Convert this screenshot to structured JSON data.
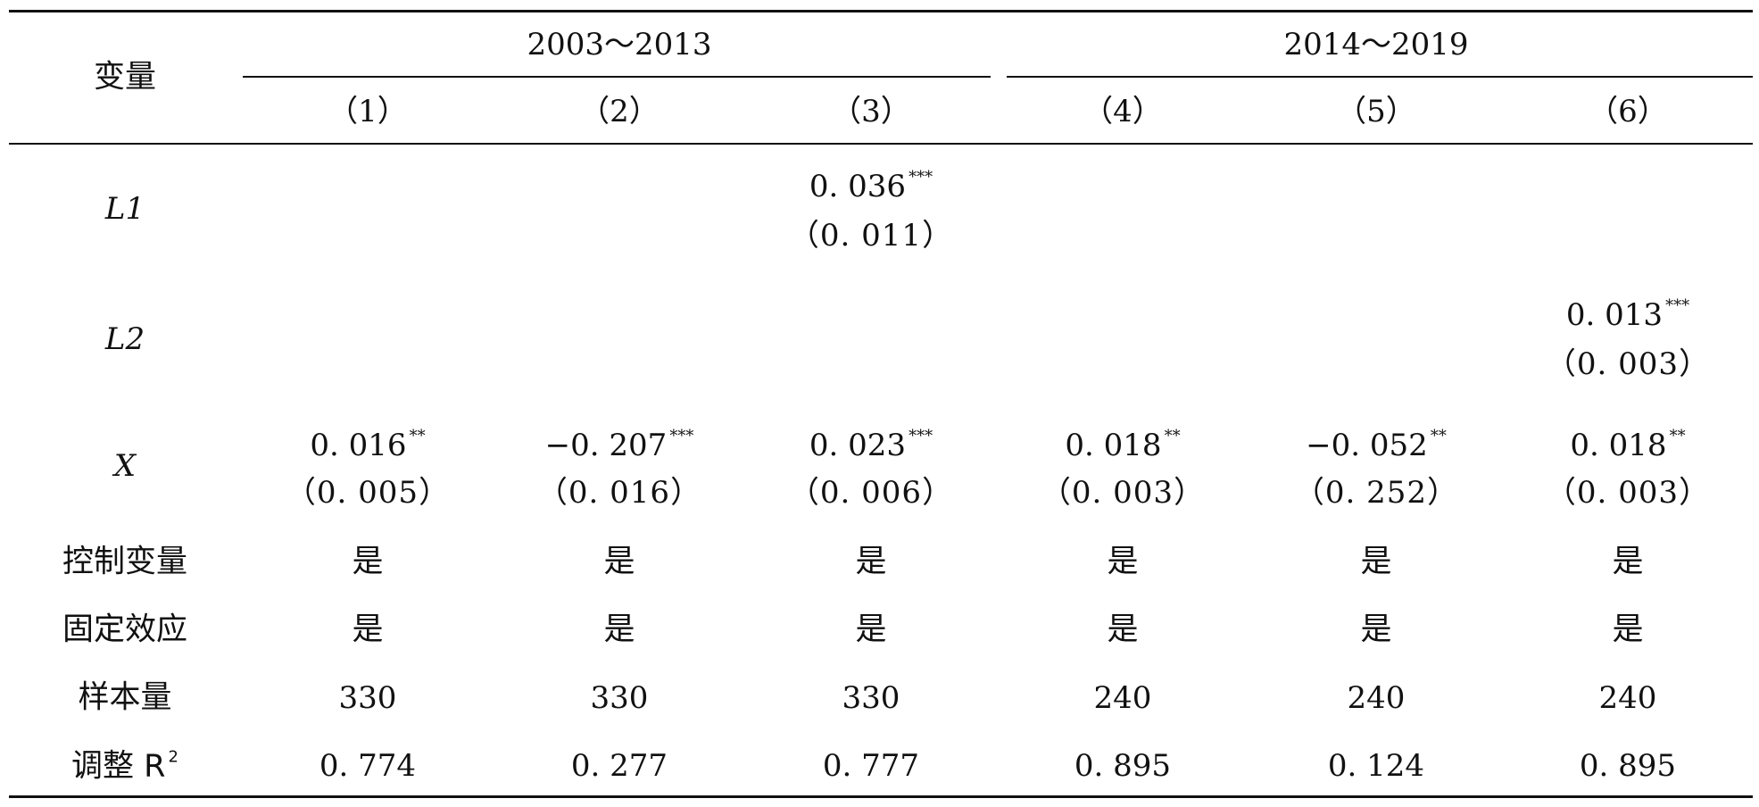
{
  "table": {
    "variable_header": "变量",
    "groups": [
      "2003～2013",
      "2014～2019"
    ],
    "columns": [
      "（1）",
      "（2）",
      "（3）",
      "（4）",
      "（5）",
      "（6）"
    ],
    "rows": {
      "L1": {
        "label": "L1",
        "coef": [
          "",
          "",
          "0. 036",
          "",
          "",
          ""
        ],
        "stars": [
          "",
          "",
          "***",
          "",
          "",
          ""
        ],
        "se": [
          "",
          "",
          "（0. 011）",
          "",
          "",
          ""
        ]
      },
      "L2": {
        "label": "L2",
        "coef": [
          "",
          "",
          "",
          "",
          "",
          "0. 013"
        ],
        "stars": [
          "",
          "",
          "",
          "",
          "",
          "***"
        ],
        "se": [
          "",
          "",
          "",
          "",
          "",
          "（0. 003）"
        ]
      },
      "X": {
        "label": "X",
        "coef": [
          "0. 016",
          "−0. 207",
          "0. 023",
          "0. 018",
          "−0. 052",
          "0. 018"
        ],
        "stars": [
          "**",
          "***",
          "***",
          "**",
          "**",
          "**"
        ],
        "se": [
          "（0. 005）",
          "（0. 016）",
          "（0. 006）",
          "（0. 003）",
          "（0. 252）",
          "（0. 003）"
        ]
      },
      "controls": {
        "label": "控制变量",
        "values": [
          "是",
          "是",
          "是",
          "是",
          "是",
          "是"
        ]
      },
      "fixed_effects": {
        "label": "固定效应",
        "values": [
          "是",
          "是",
          "是",
          "是",
          "是",
          "是"
        ]
      },
      "n": {
        "label": "样本量",
        "values": [
          "330",
          "330",
          "330",
          "240",
          "240",
          "240"
        ]
      },
      "adj_r2": {
        "label": "调整 R",
        "label_sup": "2",
        "values": [
          "0. 774",
          "0. 277",
          "0. 777",
          "0. 895",
          "0. 124",
          "0. 895"
        ]
      }
    }
  }
}
